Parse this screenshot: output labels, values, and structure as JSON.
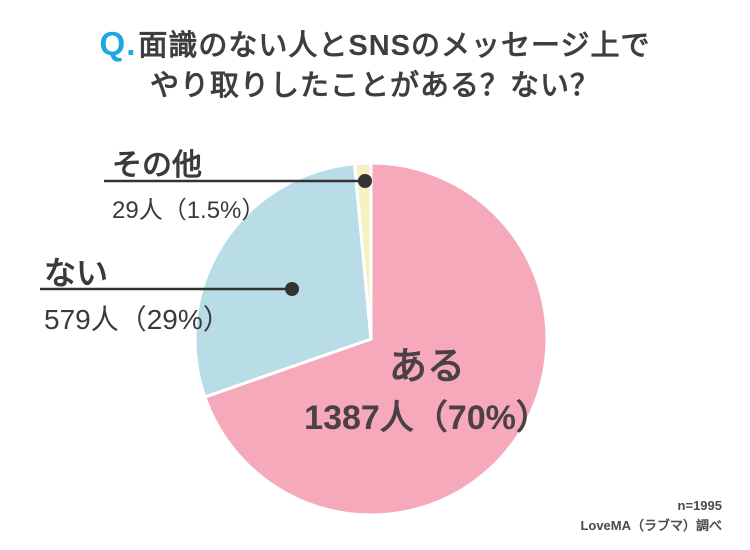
{
  "title": {
    "q_prefix": "Q.",
    "line1": "面識のない人とSNSのメッセージ上で",
    "line2": "やり取りしたことがある？ない？"
  },
  "chart_data": {
    "type": "pie",
    "title": "面識のない人とSNSのメッセージ上でやり取りしたことがある？ない？",
    "slices": [
      {
        "label": "ある",
        "count": 1387,
        "percent": 70,
        "value_display": "1387人（70%）",
        "color": "#f5a9bb"
      },
      {
        "label": "ない",
        "count": 579,
        "percent": 29,
        "value_display": "579人（29%）",
        "color": "#b9dde6"
      },
      {
        "label": "その他",
        "count": 29,
        "percent": 1.5,
        "value_display": "29人（1.5%）",
        "color": "#f7f0c1"
      }
    ],
    "start_angle_deg": 0,
    "direction": "clockwise",
    "slice_gap_color": "#ffffff",
    "leader_color": "#333333",
    "legend_position": "callout-labels",
    "sample_size": 1995
  },
  "footer": {
    "sample": "n=1995",
    "source": "LoveMA（ラブマ）調べ"
  },
  "colors": {
    "q_accent": "#1ba7e0",
    "text": "#3e3e3e"
  }
}
